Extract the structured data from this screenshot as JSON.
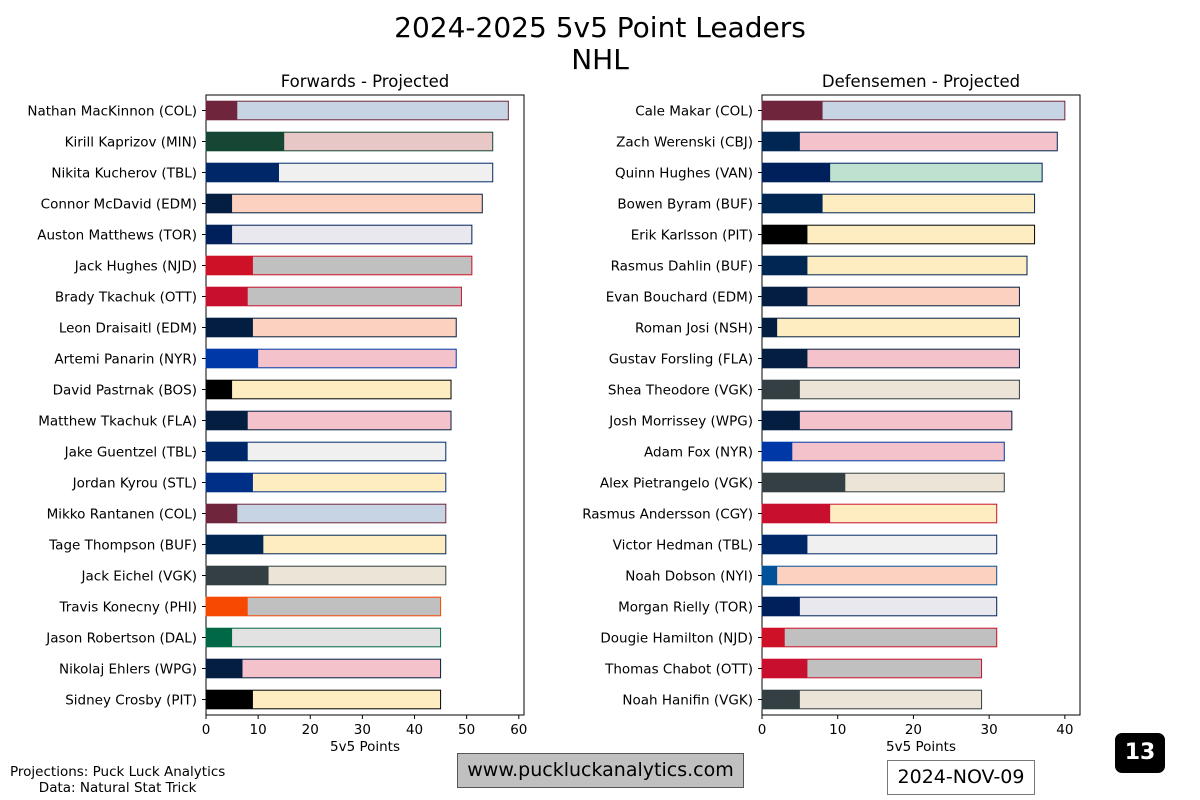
{
  "title": "2024-2025 5v5 Point Leaders",
  "subtitle": "NHL",
  "credits": {
    "line1": "Projections: Puck Luck Analytics",
    "line2": "Data: Natural Stat Trick"
  },
  "website": "www.puckluckanalytics.com",
  "date": "2024-NOV-09",
  "badge": "13",
  "chart_data": [
    {
      "type": "bar",
      "orientation": "horizontal",
      "stacked": true,
      "title": "Forwards - Projected",
      "xlabel": "5v5 Points",
      "xlim": [
        0,
        61
      ],
      "xticks": [
        0,
        10,
        20,
        30,
        40,
        50,
        60
      ],
      "categories": [
        "Nathan MacKinnon (COL)",
        "Kirill Kaprizov (MIN)",
        "Nikita Kucherov (TBL)",
        "Connor McDavid (EDM)",
        "Auston Matthews (TOR)",
        "Jack Hughes (NJD)",
        "Brady Tkachuk (OTT)",
        "Leon Draisaitl (EDM)",
        "Artemi Panarin (NYR)",
        "David Pastrnak (BOS)",
        "Matthew Tkachuk (FLA)",
        "Jake Guentzel (TBL)",
        "Jordan Kyrou (STL)",
        "Mikko Rantanen (COL)",
        "Tage Thompson (BUF)",
        "Jack Eichel (VGK)",
        "Travis Konecny (PHI)",
        "Jason Robertson (DAL)",
        "Nikolaj Ehlers (WPG)",
        "Sidney Crosby (PIT)"
      ],
      "current": [
        6,
        15,
        14,
        5,
        5,
        9,
        8,
        9,
        10,
        5,
        8,
        8,
        9,
        6,
        11,
        12,
        8,
        5,
        7,
        9
      ],
      "projected": [
        58,
        55,
        55,
        53,
        51,
        51,
        49,
        48,
        48,
        47,
        47,
        46,
        46,
        46,
        46,
        46,
        45,
        45,
        45,
        45
      ],
      "colors": [
        {
          "primary": "#6f263d",
          "secondary": "#c6d4e3"
        },
        {
          "primary": "#154734",
          "secondary": "#e8c7c7"
        },
        {
          "primary": "#002868",
          "secondary": "#f0f0f0"
        },
        {
          "primary": "#041e42",
          "secondary": "#fdd1c0"
        },
        {
          "primary": "#00205b",
          "secondary": "#e8e8ee"
        },
        {
          "primary": "#ce1126",
          "secondary": "#c0c0c0"
        },
        {
          "primary": "#c8102e",
          "secondary": "#c0c0c0"
        },
        {
          "primary": "#041e42",
          "secondary": "#fdd1c0"
        },
        {
          "primary": "#0038a8",
          "secondary": "#f3c2ca"
        },
        {
          "primary": "#000000",
          "secondary": "#fdedc0"
        },
        {
          "primary": "#041e42",
          "secondary": "#f3c2ca"
        },
        {
          "primary": "#002868",
          "secondary": "#f0f0f0"
        },
        {
          "primary": "#002f87",
          "secondary": "#fdedc0"
        },
        {
          "primary": "#6f263d",
          "secondary": "#c6d4e3"
        },
        {
          "primary": "#002654",
          "secondary": "#fdedc0"
        },
        {
          "primary": "#333f42",
          "secondary": "#ece4d7"
        },
        {
          "primary": "#f74902",
          "secondary": "#c0c0c0"
        },
        {
          "primary": "#006847",
          "secondary": "#e2e2e2"
        },
        {
          "primary": "#041e42",
          "secondary": "#f3c2ca"
        },
        {
          "primary": "#000000",
          "secondary": "#fdedc0"
        }
      ]
    },
    {
      "type": "bar",
      "orientation": "horizontal",
      "stacked": true,
      "title": "Defensemen - Projected",
      "xlabel": "5v5 Points",
      "xlim": [
        0,
        42
      ],
      "xticks": [
        0,
        10,
        20,
        30,
        40
      ],
      "categories": [
        "Cale Makar (COL)",
        "Zach Werenski (CBJ)",
        "Quinn Hughes (VAN)",
        "Bowen Byram (BUF)",
        "Erik Karlsson (PIT)",
        "Rasmus Dahlin (BUF)",
        "Evan Bouchard (EDM)",
        "Roman Josi (NSH)",
        "Gustav Forsling (FLA)",
        "Shea Theodore (VGK)",
        "Josh Morrissey (WPG)",
        "Adam Fox (NYR)",
        "Alex Pietrangelo (VGK)",
        "Rasmus Andersson (CGY)",
        "Victor Hedman (TBL)",
        "Noah Dobson (NYI)",
        "Morgan Rielly (TOR)",
        "Dougie Hamilton (NJD)",
        "Thomas Chabot (OTT)",
        "Noah Hanifin (VGK)"
      ],
      "current": [
        8,
        5,
        9,
        8,
        6,
        6,
        6,
        2,
        6,
        5,
        5,
        4,
        11,
        9,
        6,
        2,
        5,
        3,
        6,
        5
      ],
      "projected": [
        40,
        39,
        37,
        36,
        36,
        35,
        34,
        34,
        34,
        34,
        33,
        32,
        32,
        31,
        31,
        31,
        31,
        31,
        29,
        29
      ],
      "colors": [
        {
          "primary": "#6f263d",
          "secondary": "#c6d4e3"
        },
        {
          "primary": "#002654",
          "secondary": "#f3c2ca"
        },
        {
          "primary": "#00205b",
          "secondary": "#bfe1cf"
        },
        {
          "primary": "#002654",
          "secondary": "#fdedc0"
        },
        {
          "primary": "#000000",
          "secondary": "#fdedc0"
        },
        {
          "primary": "#002654",
          "secondary": "#fdedc0"
        },
        {
          "primary": "#041e42",
          "secondary": "#fdd1c0"
        },
        {
          "primary": "#041e42",
          "secondary": "#fdedc0"
        },
        {
          "primary": "#041e42",
          "secondary": "#f3c2ca"
        },
        {
          "primary": "#333f42",
          "secondary": "#ece4d7"
        },
        {
          "primary": "#041e42",
          "secondary": "#f3c2ca"
        },
        {
          "primary": "#0038a8",
          "secondary": "#f3c2ca"
        },
        {
          "primary": "#333f42",
          "secondary": "#ece4d7"
        },
        {
          "primary": "#c8102e",
          "secondary": "#fdedc0"
        },
        {
          "primary": "#002868",
          "secondary": "#f0f0f0"
        },
        {
          "primary": "#00539b",
          "secondary": "#fdd1c0"
        },
        {
          "primary": "#00205b",
          "secondary": "#e8e8ee"
        },
        {
          "primary": "#ce1126",
          "secondary": "#c0c0c0"
        },
        {
          "primary": "#c8102e",
          "secondary": "#c0c0c0"
        },
        {
          "primary": "#333f42",
          "secondary": "#ece4d7"
        }
      ]
    }
  ]
}
